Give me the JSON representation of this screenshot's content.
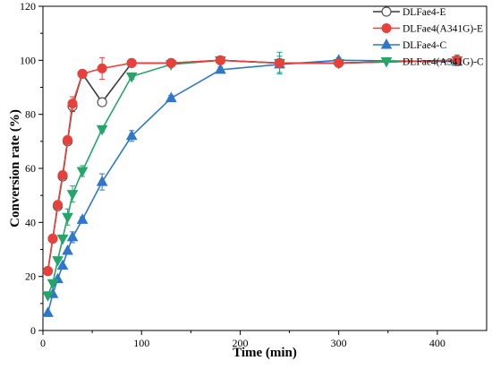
{
  "chart_data": {
    "type": "line",
    "xlabel": "Time (min)",
    "ylabel": "Conversion rate (%)",
    "xlim": [
      0,
      450
    ],
    "ylim": [
      0,
      120
    ],
    "xticks": [
      0,
      100,
      200,
      300,
      400
    ],
    "yticks": [
      0,
      20,
      40,
      60,
      80,
      100,
      120
    ],
    "grid": false,
    "legend_position": "top-right",
    "series": [
      {
        "name": "DLFae4-E",
        "color": "#3a3a3a",
        "marker": "circle-open",
        "points": [
          [
            5,
            22
          ],
          [
            10,
            34
          ],
          [
            15,
            46
          ],
          [
            20,
            57
          ],
          [
            25,
            70
          ],
          [
            30,
            83
          ],
          [
            40,
            95
          ],
          [
            60,
            84.5
          ],
          [
            90,
            99
          ],
          [
            130,
            99
          ],
          [
            180,
            100
          ],
          [
            240,
            99
          ],
          [
            300,
            99
          ],
          [
            420,
            100
          ]
        ],
        "errors": [
          0,
          0,
          0,
          0,
          0,
          2,
          1,
          0,
          1,
          1,
          1,
          1,
          1,
          1
        ]
      },
      {
        "name": "DLFae4(A341G)-E",
        "color": "#e8413c",
        "marker": "circle-filled",
        "points": [
          [
            5,
            22
          ],
          [
            10,
            34
          ],
          [
            15,
            46.5
          ],
          [
            20,
            57.5
          ],
          [
            25,
            70.5
          ],
          [
            30,
            84
          ],
          [
            40,
            95
          ],
          [
            60,
            97
          ],
          [
            90,
            99
          ],
          [
            130,
            99
          ],
          [
            180,
            100
          ],
          [
            240,
            99
          ],
          [
            300,
            99
          ],
          [
            420,
            100
          ]
        ],
        "errors": [
          0,
          0,
          0,
          0,
          0,
          2.5,
          1,
          4,
          1,
          1,
          1,
          1,
          1,
          1
        ]
      },
      {
        "name": "DLFae4-C",
        "color": "#2f77c9",
        "marker": "triangle-up",
        "points": [
          [
            5,
            6.5
          ],
          [
            10,
            13.5
          ],
          [
            15,
            19
          ],
          [
            20,
            24
          ],
          [
            25,
            29.5
          ],
          [
            30,
            34.5
          ],
          [
            40,
            41
          ],
          [
            60,
            55
          ],
          [
            90,
            72
          ],
          [
            130,
            86
          ],
          [
            180,
            96.5
          ],
          [
            240,
            98.5
          ],
          [
            300,
            100
          ],
          [
            420,
            99.5
          ]
        ],
        "errors": [
          0,
          0,
          0,
          0,
          0,
          2,
          1,
          3,
          2,
          1,
          1,
          3,
          1,
          1
        ]
      },
      {
        "name": "DLFae4(A341G)-C",
        "color": "#25a56a",
        "marker": "triangle-down",
        "points": [
          [
            5,
            13
          ],
          [
            10,
            17.5
          ],
          [
            15,
            26
          ],
          [
            20,
            34
          ],
          [
            25,
            42
          ],
          [
            30,
            50.5
          ],
          [
            40,
            59
          ],
          [
            60,
            74.5
          ],
          [
            90,
            94
          ],
          [
            130,
            98.5
          ],
          [
            180,
            100
          ],
          [
            240,
            99
          ],
          [
            300,
            99
          ],
          [
            420,
            100
          ]
        ],
        "errors": [
          0,
          0,
          0,
          0,
          3,
          3,
          2,
          1,
          1,
          1,
          1,
          4,
          1,
          2
        ]
      }
    ]
  }
}
